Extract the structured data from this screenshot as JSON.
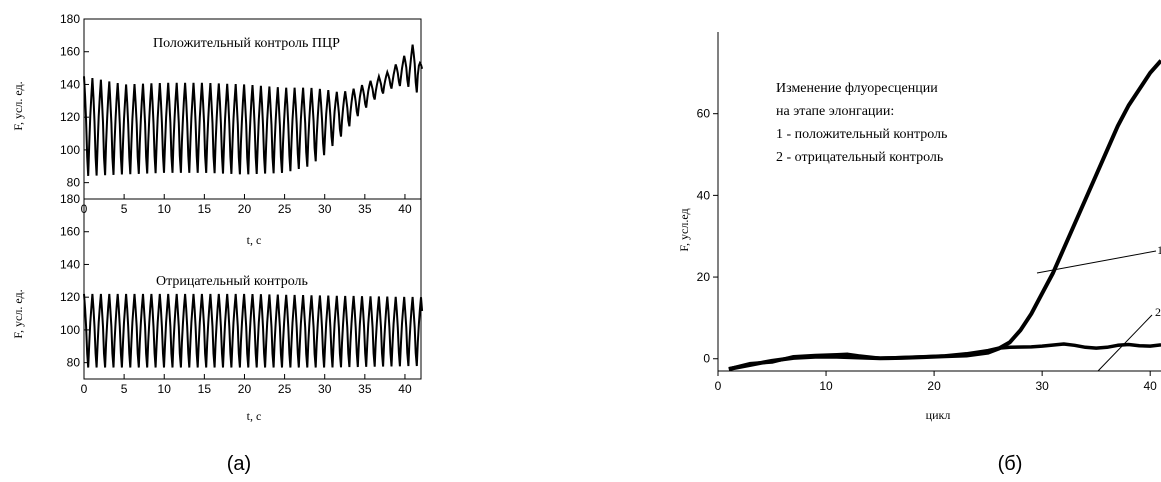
{
  "chart_data": [
    {
      "panel": "a-top",
      "type": "line",
      "annotation": "Положительный контроль ПЦР",
      "ylabel": "F, усл. ед.",
      "xlabel": "t, с",
      "xlim": [
        0,
        42
      ],
      "ylim": [
        70,
        180
      ],
      "xticks": [
        "0",
        "5",
        "10",
        "15",
        "20",
        "25",
        "30",
        "35",
        "40"
      ],
      "yticks": [
        "80",
        "100",
        "120",
        "140",
        "160",
        "180"
      ],
      "signal": {
        "period": 1.05,
        "points_per_cycle": 8,
        "end": 42.2
      },
      "envelope": {
        "t": [
          0,
          5,
          10,
          15,
          20,
          25,
          28,
          30,
          32,
          34,
          36,
          38,
          40,
          41.5,
          42
        ],
        "high": [
          145,
          140,
          141,
          141,
          140,
          138,
          138,
          137,
          135,
          138,
          143,
          148,
          158,
          168,
          152
        ],
        "low": [
          84,
          85,
          86,
          86,
          85,
          86,
          90,
          97,
          108,
          120,
          130,
          137,
          140,
          135,
          140
        ]
      }
    },
    {
      "panel": "a-bottom",
      "type": "line",
      "annotation": "Отрицательный контроль",
      "ylabel": "F, усл. ед.",
      "xlabel": "t, с",
      "xlim": [
        0,
        42
      ],
      "ylim": [
        70,
        180
      ],
      "xticks": [
        "0",
        "5",
        "10",
        "15",
        "20",
        "25",
        "30",
        "35",
        "40"
      ],
      "yticks": [
        "80",
        "100",
        "120",
        "140",
        "160",
        "180"
      ],
      "signal": {
        "period": 1.05,
        "points_per_cycle": 8,
        "end": 42.2
      },
      "envelope": {
        "t": [
          0,
          10,
          20,
          30,
          42
        ],
        "high": [
          122,
          122,
          122,
          121,
          120
        ],
        "low": [
          77,
          77,
          77,
          77,
          78
        ]
      }
    },
    {
      "panel": "b",
      "type": "line",
      "ylabel": "F, усл.ед",
      "xlabel": "цикл",
      "xlim": [
        0,
        41
      ],
      "ylim": [
        -3,
        80
      ],
      "xticks": [
        "0",
        "10",
        "20",
        "30",
        "40"
      ],
      "yticks": [
        "0",
        "20",
        "40",
        "60"
      ],
      "annotation_lines": [
        "Изменение флуоресценции",
        "на этапе элонгации:",
        "1 - положительный контроль",
        "2 - отрицательный контроль"
      ],
      "series": [
        {
          "label": "1",
          "x": [
            1,
            3,
            5,
            7,
            9,
            11,
            13,
            15,
            17,
            19,
            21,
            23,
            25,
            26,
            27,
            28,
            29,
            30,
            31,
            32,
            33,
            34,
            35,
            36,
            37,
            38,
            39,
            40,
            41
          ],
          "y": [
            -2.5,
            -1.5,
            -0.5,
            0.2,
            0.5,
            0.5,
            0.3,
            0.1,
            0.2,
            0.4,
            0.6,
            0.8,
            1.5,
            2.5,
            4,
            7,
            11,
            16,
            21,
            27,
            33,
            39,
            45,
            51,
            57,
            62,
            66,
            70,
            73
          ]
        },
        {
          "label": "2",
          "x": [
            1,
            3,
            5,
            7,
            9,
            11,
            12,
            13,
            15,
            17,
            19,
            21,
            23,
            25,
            26,
            27,
            29,
            30,
            32,
            33,
            34,
            35,
            36,
            37,
            38,
            39,
            40,
            41
          ],
          "y": [
            -2.5,
            -1.2,
            -0.8,
            0.5,
            0.8,
            1.0,
            1.1,
            0.7,
            0.1,
            0.3,
            0.5,
            0.7,
            1.2,
            2.0,
            2.6,
            2.8,
            2.9,
            3.1,
            3.6,
            3.3,
            2.8,
            2.6,
            2.8,
            3.3,
            3.5,
            3.2,
            3.1,
            3.4
          ]
        }
      ]
    }
  ],
  "captions": {
    "a": "(а)",
    "b": "(б)"
  },
  "leaders": {
    "label_1": "1",
    "label_2": "2"
  }
}
